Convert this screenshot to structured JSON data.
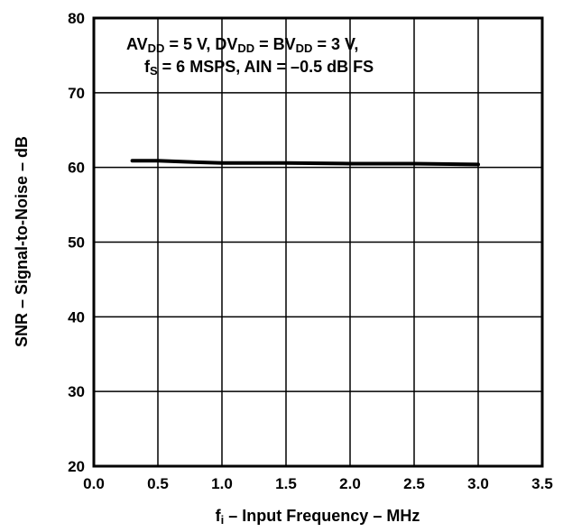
{
  "chart_data": {
    "type": "line",
    "xlabel": {
      "base": "f",
      "sub": "i",
      "rest": " – Input Frequency – MHz"
    },
    "ylabel": "SNR – Signal-to-Noise – dB",
    "annotation": {
      "line1": [
        {
          "t": "AV"
        },
        {
          "t": "DD",
          "sub": true
        },
        {
          "t": " = 5 V, DV"
        },
        {
          "t": "DD",
          "sub": true
        },
        {
          "t": " = BV"
        },
        {
          "t": "DD",
          "sub": true
        },
        {
          "t": " = 3 V,"
        }
      ],
      "line2": [
        {
          "t": "f"
        },
        {
          "t": "S",
          "sub": true
        },
        {
          "t": " = 6 MSPS, AIN = –0.5 dB FS"
        }
      ]
    },
    "xlim": [
      0.0,
      3.5
    ],
    "ylim": [
      20,
      80
    ],
    "xticks": [
      "0.0",
      "0.5",
      "1.0",
      "1.5",
      "2.0",
      "2.5",
      "3.0",
      "3.5"
    ],
    "yticks": [
      "20",
      "30",
      "40",
      "50",
      "60",
      "70",
      "80"
    ],
    "grid": true,
    "series": [
      {
        "x": [
          0.3,
          0.5,
          0.8,
          1.0,
          1.5,
          2.0,
          2.5,
          3.0
        ],
        "y": [
          60.9,
          60.9,
          60.7,
          60.6,
          60.6,
          60.5,
          60.5,
          60.4
        ]
      }
    ]
  }
}
